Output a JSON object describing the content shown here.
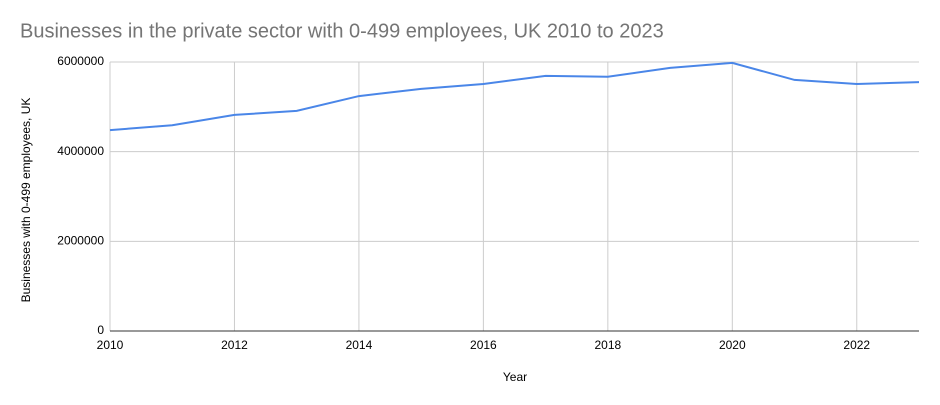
{
  "chart_data": {
    "type": "line",
    "title": "Businesses in the private sector with 0-499 employees, UK 2010 to 2023",
    "x_label": "Year",
    "y_label": "Businesses with 0-499 employees, UK",
    "x": [
      2010,
      2011,
      2012,
      2013,
      2014,
      2015,
      2016,
      2017,
      2018,
      2019,
      2020,
      2021,
      2022,
      2023
    ],
    "series": [
      {
        "name": "Businesses with 0-499 employees, UK",
        "color": "#4a86e8",
        "values": [
          4480000,
          4590000,
          4820000,
          4910000,
          5240000,
          5400000,
          5510000,
          5690000,
          5670000,
          5870000,
          5980000,
          5600000,
          5510000,
          5550000
        ]
      }
    ],
    "xlim": [
      2010,
      2023
    ],
    "xticks": [
      2010,
      2012,
      2014,
      2016,
      2018,
      2020,
      2022
    ],
    "ylim": [
      0,
      6000000
    ],
    "yticks": [
      0,
      2000000,
      4000000,
      6000000
    ],
    "grid": true
  }
}
